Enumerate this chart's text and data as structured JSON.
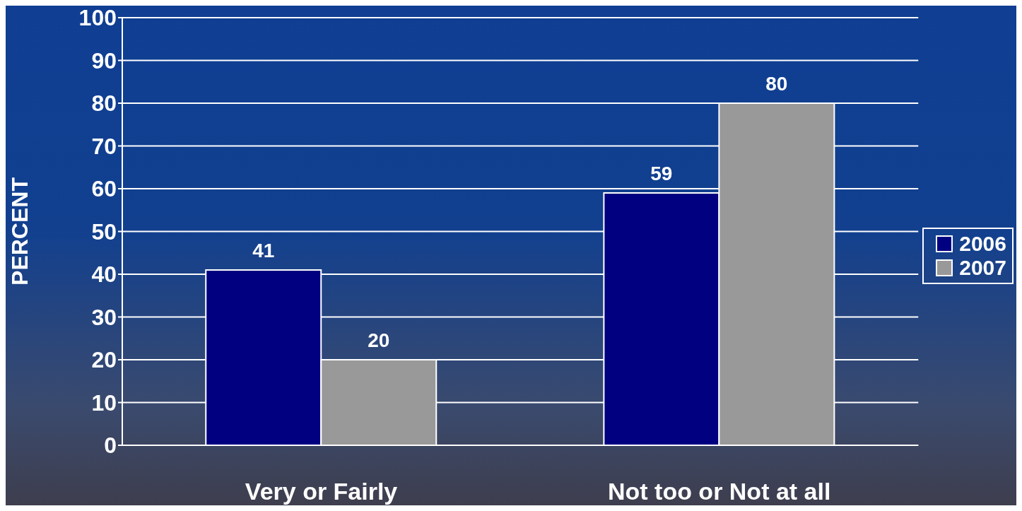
{
  "chart_data": {
    "type": "bar",
    "ylabel": "PERCENT",
    "categories": [
      "Very or Fairly",
      "Not too or Not at all"
    ],
    "series": [
      {
        "name": "2006",
        "color": "#000080",
        "values": [
          41,
          59
        ]
      },
      {
        "name": "2007",
        "color": "#999999",
        "values": [
          20,
          80
        ]
      }
    ],
    "ylim": [
      0,
      100
    ],
    "yticks": [
      0,
      10,
      20,
      30,
      40,
      50,
      60,
      70,
      80,
      90,
      100
    ],
    "grid": "y",
    "legend": "right",
    "data_labels": true
  }
}
